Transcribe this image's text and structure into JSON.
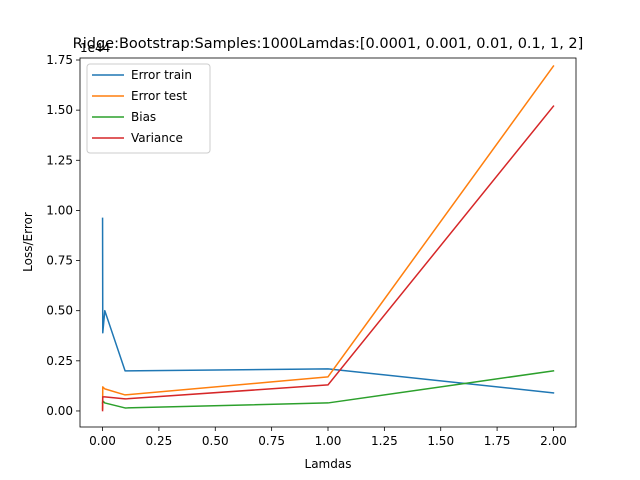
{
  "chart_data": {
    "type": "line",
    "title": "Ridge:Bootstrap:Samples:1000Lamdas:[0.0001, 0.001, 0.01, 0.1, 1, 2]",
    "xlabel": "Lamdas",
    "ylabel": "Loss/Error",
    "offset_text": "1e44",
    "x": [
      0.0001,
      0.001,
      0.01,
      0.1,
      1,
      2
    ],
    "xlim": [
      -0.1,
      2.1
    ],
    "ylim": [
      -0.08,
      1.76
    ],
    "xticks": [
      0.0,
      0.25,
      0.5,
      0.75,
      1.0,
      1.25,
      1.5,
      1.75,
      2.0
    ],
    "xtick_labels": [
      "0.00",
      "0.25",
      "0.50",
      "0.75",
      "1.00",
      "1.25",
      "1.50",
      "1.75",
      "2.00"
    ],
    "yticks": [
      0.0,
      0.25,
      0.5,
      0.75,
      1.0,
      1.25,
      1.5,
      1.75
    ],
    "ytick_labels": [
      "0.00",
      "0.25",
      "0.50",
      "0.75",
      "1.00",
      "1.25",
      "1.50",
      "1.75"
    ],
    "grid": false,
    "legend_position": "top-left",
    "series": [
      {
        "name": "Error train",
        "color": "#1f77b4",
        "values": [
          0.96,
          0.39,
          0.5,
          0.2,
          0.21,
          0.09
        ]
      },
      {
        "name": "Error test",
        "color": "#ff7f0e",
        "values": [
          0.01,
          0.12,
          0.11,
          0.08,
          0.17,
          1.72
        ]
      },
      {
        "name": "Bias",
        "color": "#2ca02c",
        "values": [
          0.04,
          0.05,
          0.04,
          0.015,
          0.04,
          0.2
        ]
      },
      {
        "name": "Variance",
        "color": "#d62728",
        "values": [
          0.002,
          0.07,
          0.07,
          0.06,
          0.13,
          1.52
        ]
      }
    ]
  }
}
